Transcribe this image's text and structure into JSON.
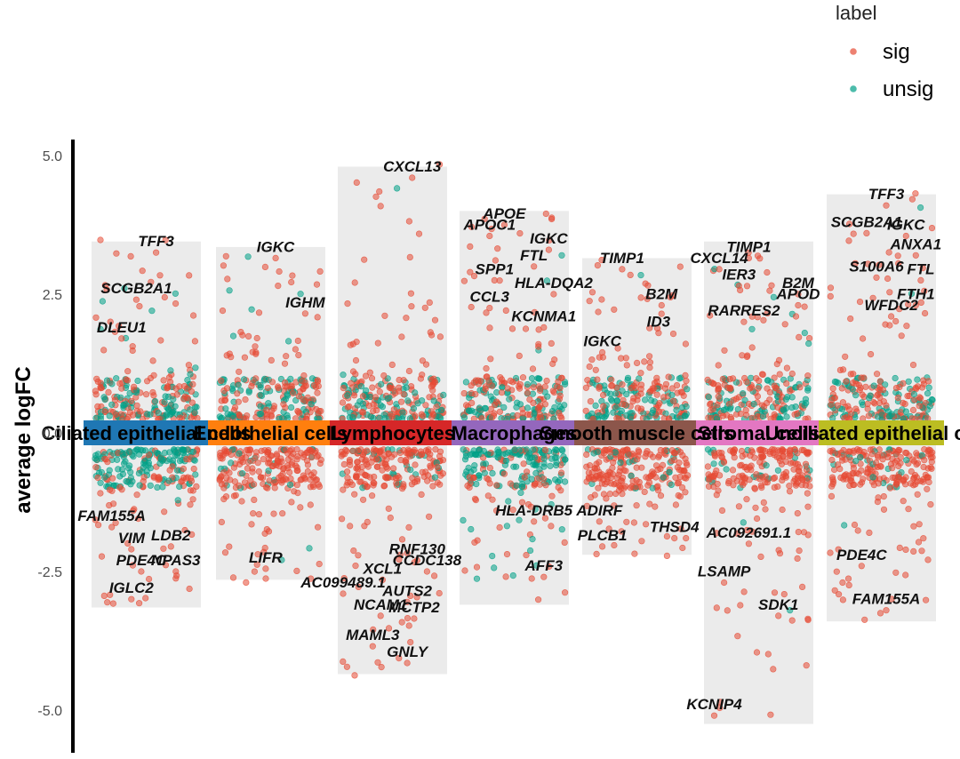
{
  "chart_data": {
    "type": "scatter",
    "title": "",
    "xlabel": "",
    "ylabel": "average logFC",
    "ylim": [
      -5.5,
      5.3
    ],
    "yticks": [
      5.0,
      2.5,
      0.0,
      -2.5,
      -5.0
    ],
    "ytick_labels": [
      "5.0",
      "2.5",
      "0.0",
      "-2.5",
      "-5.0"
    ],
    "grid": false,
    "legend": {
      "title": "label",
      "position": "top-right",
      "entries": [
        {
          "name": "sig",
          "color": "#e64b35"
        },
        {
          "name": "unsig",
          "color": "#00a087"
        }
      ]
    },
    "clusters": [
      {
        "name": "Ciliated epithelial cells",
        "color": "#1f77b4",
        "max_up": 3.45,
        "max_down": -3.15,
        "labels": [
          {
            "gene": "TFF3",
            "x": 0.6,
            "y": 3.25
          },
          {
            "gene": "SCGB2A1",
            "x": 0.4,
            "y": 2.4
          },
          {
            "gene": "DLEU1",
            "x": 0.25,
            "y": 1.7
          },
          {
            "gene": "FAM155A",
            "x": 0.15,
            "y": -1.7
          },
          {
            "gene": "VIM",
            "x": 0.35,
            "y": -2.1
          },
          {
            "gene": "LDB2",
            "x": 0.75,
            "y": -2.05
          },
          {
            "gene": "PDE4C",
            "x": 0.45,
            "y": -2.5
          },
          {
            "gene": "NPAS3",
            "x": 0.8,
            "y": -2.5
          },
          {
            "gene": "IGLC2",
            "x": 0.35,
            "y": -3.0
          }
        ]
      },
      {
        "name": "Endothelial cells",
        "color": "#ff7f0e",
        "max_up": 3.35,
        "max_down": -2.65,
        "labels": [
          {
            "gene": "IGKC",
            "x": 0.55,
            "y": 3.15
          },
          {
            "gene": "IGHM",
            "x": 0.85,
            "y": 2.15
          },
          {
            "gene": "LIFR",
            "x": 0.45,
            "y": -2.45
          }
        ]
      },
      {
        "name": "Lymphocytes",
        "color": "#d62728",
        "max_up": 4.8,
        "max_down": -4.35,
        "labels": [
          {
            "gene": "CXCL13",
            "x": 0.7,
            "y": 4.6
          },
          {
            "gene": "AC099489.1",
            "x": 0.0,
            "y": -2.9
          },
          {
            "gene": "XCL1",
            "x": 0.4,
            "y": -2.65
          },
          {
            "gene": "RNF130",
            "x": 0.75,
            "y": -2.3
          },
          {
            "gene": "CCDC138",
            "x": 0.85,
            "y": -2.5
          },
          {
            "gene": "AUTS2",
            "x": 0.65,
            "y": -3.05
          },
          {
            "gene": "NCAM1",
            "x": 0.38,
            "y": -3.3
          },
          {
            "gene": "MCTP2",
            "x": 0.72,
            "y": -3.35
          },
          {
            "gene": "MAML3",
            "x": 0.3,
            "y": -3.85
          },
          {
            "gene": "GNLY",
            "x": 0.65,
            "y": -4.15
          }
        ]
      },
      {
        "name": "Macrophages",
        "color": "#9467bd",
        "max_up": 4.0,
        "max_down": -3.1,
        "labels": [
          {
            "gene": "APOE",
            "x": 0.4,
            "y": 3.75
          },
          {
            "gene": "IGKC",
            "x": 0.85,
            "y": 3.3
          },
          {
            "gene": "APOC1",
            "x": 0.25,
            "y": 3.55
          },
          {
            "gene": "FTL",
            "x": 0.7,
            "y": 3.0
          },
          {
            "gene": "SPP1",
            "x": 0.3,
            "y": 2.75
          },
          {
            "gene": "HLA-DQA2",
            "x": 0.9,
            "y": 2.5
          },
          {
            "gene": "CCL3",
            "x": 0.25,
            "y": 2.25
          },
          {
            "gene": "KCNMA1",
            "x": 0.8,
            "y": 1.9
          },
          {
            "gene": "HLA-DRB5",
            "x": 0.7,
            "y": -1.6
          },
          {
            "gene": "AFF3",
            "x": 0.8,
            "y": -2.6
          }
        ]
      },
      {
        "name": "Smooth muscle cells",
        "color": "#8c564b",
        "max_up": 3.15,
        "max_down": -2.2,
        "labels": [
          {
            "gene": "TIMP1",
            "x": 0.35,
            "y": 2.95
          },
          {
            "gene": "B2M",
            "x": 0.75,
            "y": 2.3
          },
          {
            "gene": "ID3",
            "x": 0.72,
            "y": 1.8
          },
          {
            "gene": "IGKC",
            "x": 0.15,
            "y": 1.45
          },
          {
            "gene": "ADIRF",
            "x": 0.12,
            "y": -1.6
          },
          {
            "gene": "THSD4",
            "x": 0.88,
            "y": -1.9
          },
          {
            "gene": "PLCB1",
            "x": 0.15,
            "y": -2.05
          }
        ]
      },
      {
        "name": "Stromal cells",
        "color": "#e377c2",
        "max_up": 3.45,
        "max_down": -5.25,
        "labels": [
          {
            "gene": "TIMP1",
            "x": 0.4,
            "y": 3.15
          },
          {
            "gene": "CXCL14",
            "x": 0.1,
            "y": 2.95
          },
          {
            "gene": "B2M",
            "x": 0.9,
            "y": 2.5
          },
          {
            "gene": "IER3",
            "x": 0.3,
            "y": 2.65
          },
          {
            "gene": "APOD",
            "x": 0.9,
            "y": 2.3
          },
          {
            "gene": "RARRES2",
            "x": 0.35,
            "y": 2.0
          },
          {
            "gene": "AC092691.1",
            "x": 0.4,
            "y": -2.0
          },
          {
            "gene": "LSAMP",
            "x": 0.15,
            "y": -2.7
          },
          {
            "gene": "SDK1",
            "x": 0.7,
            "y": -3.3
          },
          {
            "gene": "KCNIP4",
            "x": 0.05,
            "y": -5.1
          }
        ]
      },
      {
        "name": "Unciliated epithelial cells",
        "color": "#bcbd22",
        "max_up": 4.3,
        "max_down": -3.4,
        "labels": [
          {
            "gene": "TFF3",
            "x": 0.55,
            "y": 4.1
          },
          {
            "gene": "SCGB2A1",
            "x": 0.35,
            "y": 3.6
          },
          {
            "gene": "IGKC",
            "x": 0.75,
            "y": 3.55
          },
          {
            "gene": "ANXA1",
            "x": 0.85,
            "y": 3.2
          },
          {
            "gene": "S100A6",
            "x": 0.45,
            "y": 2.8
          },
          {
            "gene": "FTL",
            "x": 0.9,
            "y": 2.75
          },
          {
            "gene": "FTH1",
            "x": 0.85,
            "y": 2.3
          },
          {
            "gene": "WFDC2",
            "x": 0.6,
            "y": 2.1
          },
          {
            "gene": "PDE4C",
            "x": 0.3,
            "y": -2.4
          },
          {
            "gene": "FAM155A",
            "x": 0.55,
            "y": -3.2
          }
        ]
      }
    ]
  }
}
